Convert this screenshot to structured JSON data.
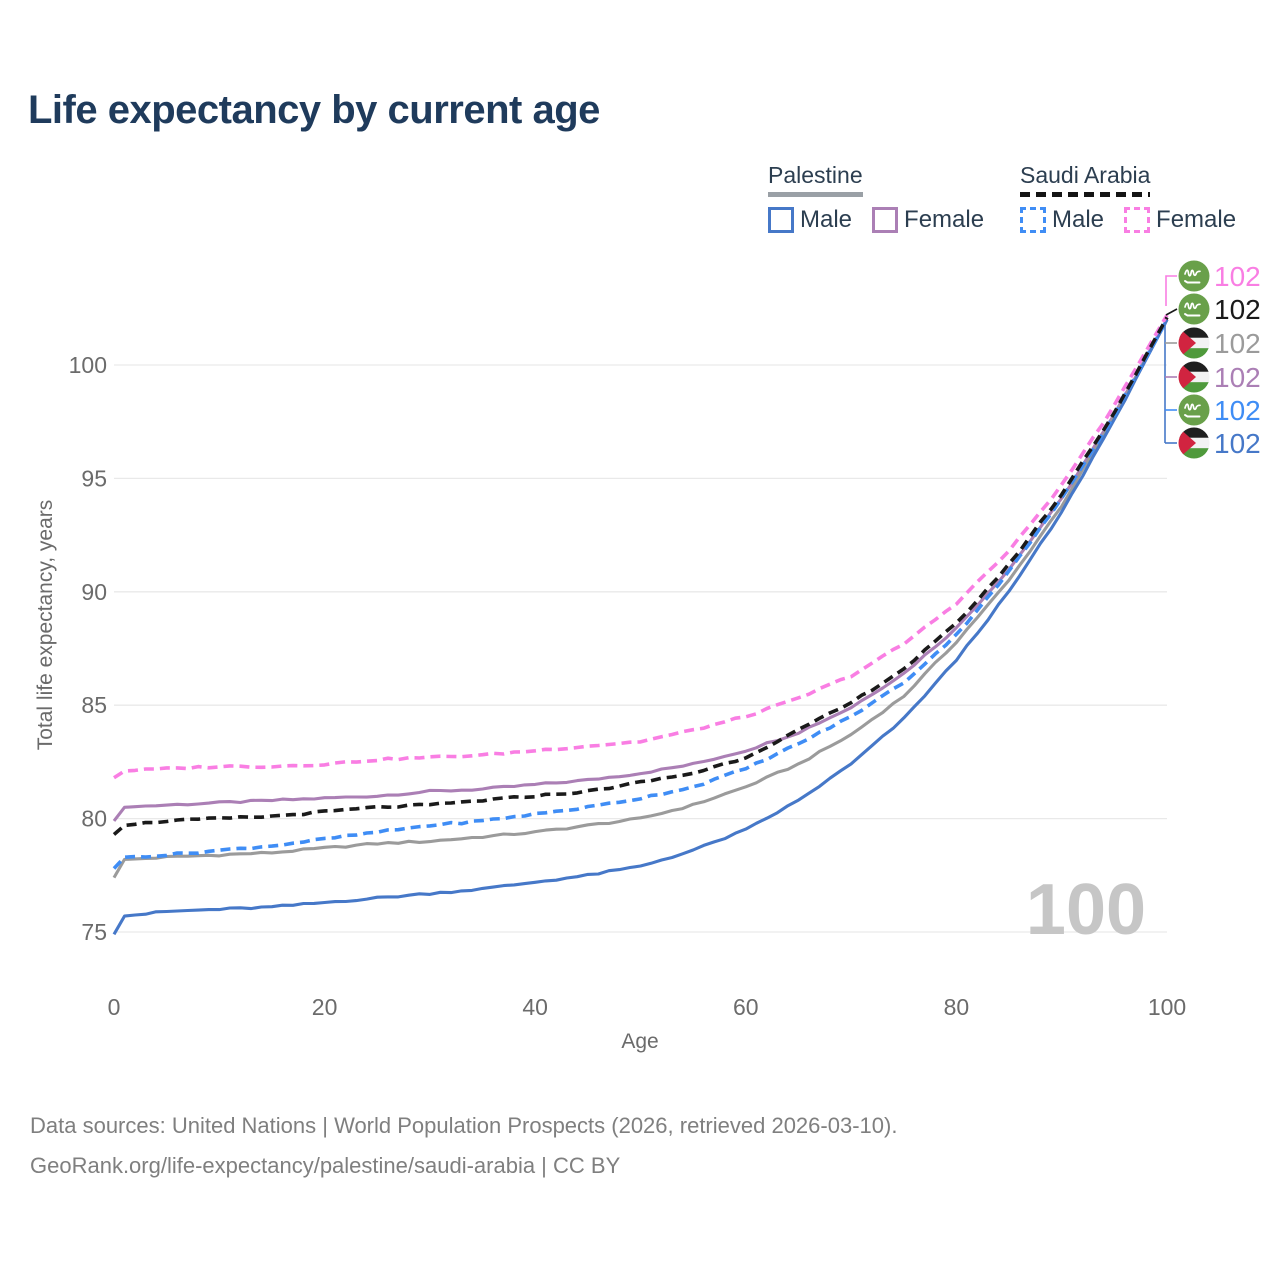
{
  "header": {
    "title": "Life expectancy by current age"
  },
  "legend": {
    "groups": [
      {
        "country": "Palestine",
        "underline_style": "solid",
        "underline_color": "#9aa0a6",
        "items": [
          {
            "label": "Male",
            "color": "#4678c8",
            "line_style": "solid"
          },
          {
            "label": "Female",
            "color": "#ab7fb5",
            "line_style": "solid"
          }
        ]
      },
      {
        "country": "Saudi Arabia",
        "underline_style": "dashed",
        "underline_color": "#141414",
        "items": [
          {
            "label": "Male",
            "color": "#3f8df5",
            "line_style": "dashed"
          },
          {
            "label": "Female",
            "color": "#f97ee3",
            "line_style": "dashed"
          }
        ]
      }
    ]
  },
  "chart_data": {
    "type": "line",
    "title": "Life expectancy by current age",
    "xlabel": "Age",
    "ylabel": "Total life expectancy, years",
    "xlim": [
      0,
      100
    ],
    "ylim": [
      75,
      102.5
    ],
    "x_ticks": [
      0,
      20,
      40,
      60,
      80,
      100
    ],
    "y_ticks": [
      75,
      80,
      85,
      90,
      95,
      100
    ],
    "grid": "horizontal",
    "hover_age_watermark": "100",
    "ages": [
      0,
      1,
      5,
      10,
      15,
      20,
      25,
      30,
      35,
      40,
      45,
      50,
      55,
      60,
      65,
      70,
      75,
      80,
      85,
      90,
      95,
      100
    ],
    "series": [
      {
        "name": "Palestine Female",
        "country": "Palestine",
        "sex": "Female",
        "color": "#ab7fb5",
        "style": "solid",
        "values": [
          79.9,
          80.5,
          80.6,
          80.7,
          80.8,
          80.9,
          81.0,
          81.2,
          81.3,
          81.5,
          81.7,
          82.0,
          82.4,
          83.0,
          83.8,
          84.9,
          86.4,
          88.4,
          91.0,
          94.1,
          97.8,
          102.0
        ]
      },
      {
        "name": "Palestine",
        "country": "Palestine",
        "sex": "Both",
        "color": "#9b9b9b",
        "style": "solid",
        "values": [
          77.4,
          78.2,
          78.3,
          78.4,
          78.5,
          78.7,
          78.9,
          79.0,
          79.2,
          79.4,
          79.7,
          80.0,
          80.6,
          81.4,
          82.4,
          83.7,
          85.4,
          87.8,
          90.5,
          93.8,
          97.7,
          102.0
        ]
      },
      {
        "name": "Palestine Male",
        "country": "Palestine",
        "sex": "Male",
        "color": "#4678c8",
        "style": "solid",
        "values": [
          74.9,
          75.7,
          75.9,
          76.0,
          76.1,
          76.3,
          76.5,
          76.7,
          76.9,
          77.2,
          77.5,
          77.9,
          78.6,
          79.5,
          80.8,
          82.4,
          84.4,
          87.0,
          90.0,
          93.5,
          97.6,
          102.0
        ]
      },
      {
        "name": "Saudi Arabia Female",
        "country": "Saudi Arabia",
        "sex": "Female",
        "color": "#f97ee3",
        "style": "dashed",
        "values": [
          81.8,
          82.1,
          82.2,
          82.3,
          82.3,
          82.4,
          82.6,
          82.7,
          82.8,
          83.0,
          83.2,
          83.4,
          83.9,
          84.5,
          85.3,
          86.3,
          87.7,
          89.5,
          91.8,
          94.7,
          98.2,
          102.2
        ]
      },
      {
        "name": "Saudi Arabia Male",
        "country": "Saudi Arabia",
        "sex": "Male",
        "color": "#3f8df5",
        "style": "dashed",
        "values": [
          77.8,
          78.3,
          78.4,
          78.6,
          78.8,
          79.1,
          79.4,
          79.7,
          79.9,
          80.2,
          80.5,
          80.9,
          81.4,
          82.2,
          83.3,
          84.5,
          86.0,
          88.1,
          90.9,
          94.1,
          97.8,
          102.0
        ]
      },
      {
        "name": "Saudi Arabia",
        "country": "Saudi Arabia",
        "sex": "Both",
        "color": "#1a1a1a",
        "style": "dashed",
        "values": [
          79.3,
          79.7,
          79.9,
          80.0,
          80.1,
          80.3,
          80.5,
          80.6,
          80.8,
          81.0,
          81.2,
          81.6,
          82.0,
          82.7,
          83.9,
          85.1,
          86.6,
          88.6,
          91.2,
          94.3,
          97.9,
          102.1
        ]
      }
    ],
    "end_labels": [
      {
        "flag": "saudi-arabia",
        "series": "Saudi Arabia Female",
        "value": "102",
        "color": "#f97ee3"
      },
      {
        "flag": "saudi-arabia",
        "series": "Saudi Arabia",
        "value": "102",
        "color": "#1a1a1a"
      },
      {
        "flag": "palestine",
        "series": "Palestine",
        "value": "102",
        "color": "#9b9b9b"
      },
      {
        "flag": "palestine",
        "series": "Palestine Female",
        "value": "102",
        "color": "#ab7fb5"
      },
      {
        "flag": "saudi-arabia",
        "series": "Saudi Arabia Male",
        "value": "102",
        "color": "#3f8df5"
      },
      {
        "flag": "palestine",
        "series": "Palestine Male",
        "value": "102",
        "color": "#4678c8"
      }
    ],
    "legend_position": "top-right"
  },
  "footer": {
    "line1": "Data sources: United Nations | World Population Prospects (2026, retrieved 2026-03-10).",
    "line2": "GeoRank.org/life-expectancy/palestine/saudi-arabia | CC BY"
  }
}
